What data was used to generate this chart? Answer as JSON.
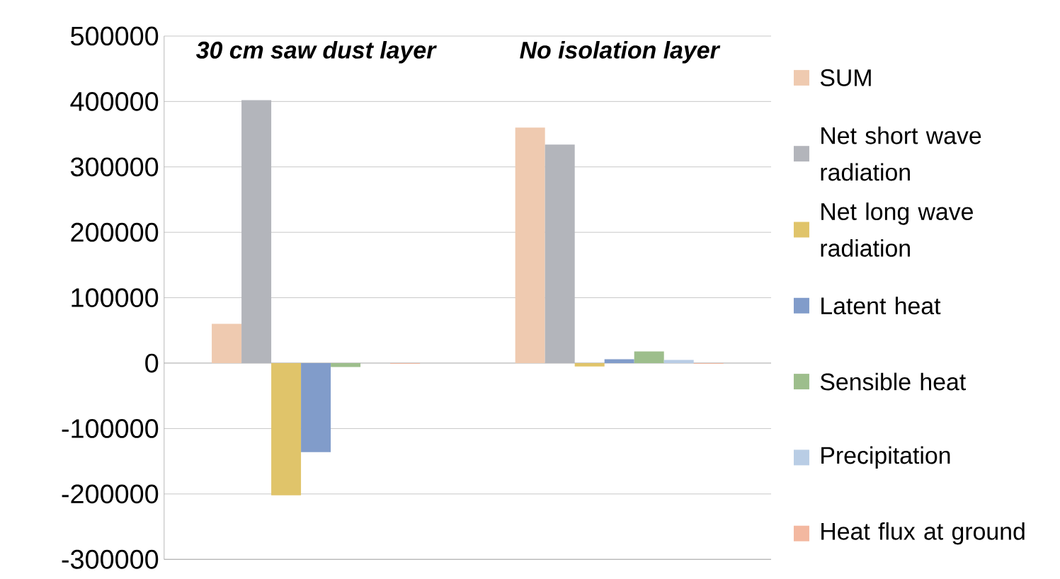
{
  "chart_data": {
    "type": "bar",
    "categories": [
      "30 cm saw dust layer",
      "No isolation layer"
    ],
    "series": [
      {
        "name": "SUM",
        "color": "#efcab0",
        "values": [
          60000,
          360000
        ]
      },
      {
        "name": "Net short wave radiation",
        "color": "#b3b5bb",
        "values": [
          402000,
          334000
        ]
      },
      {
        "name": "Net long wave radiation",
        "color": "#e0c46a",
        "values": [
          -202000,
          -5000
        ]
      },
      {
        "name": "Latent heat",
        "color": "#819cca",
        "values": [
          -136000,
          6000
        ]
      },
      {
        "name": "Sensible heat",
        "color": "#9dbe8c",
        "values": [
          -6000,
          18000
        ]
      },
      {
        "name": "Precipitation",
        "color": "#b9cde5",
        "values": [
          null,
          5000
        ]
      },
      {
        "name": "Heat flux at ground",
        "color": "#f3b8a0",
        "values": [
          -1000,
          -1000
        ]
      }
    ],
    "ylim": [
      -300000,
      500000
    ],
    "yticks": [
      -300000,
      -200000,
      -100000,
      0,
      100000,
      200000,
      300000,
      400000,
      500000
    ],
    "grid": "y",
    "legend": "right"
  }
}
